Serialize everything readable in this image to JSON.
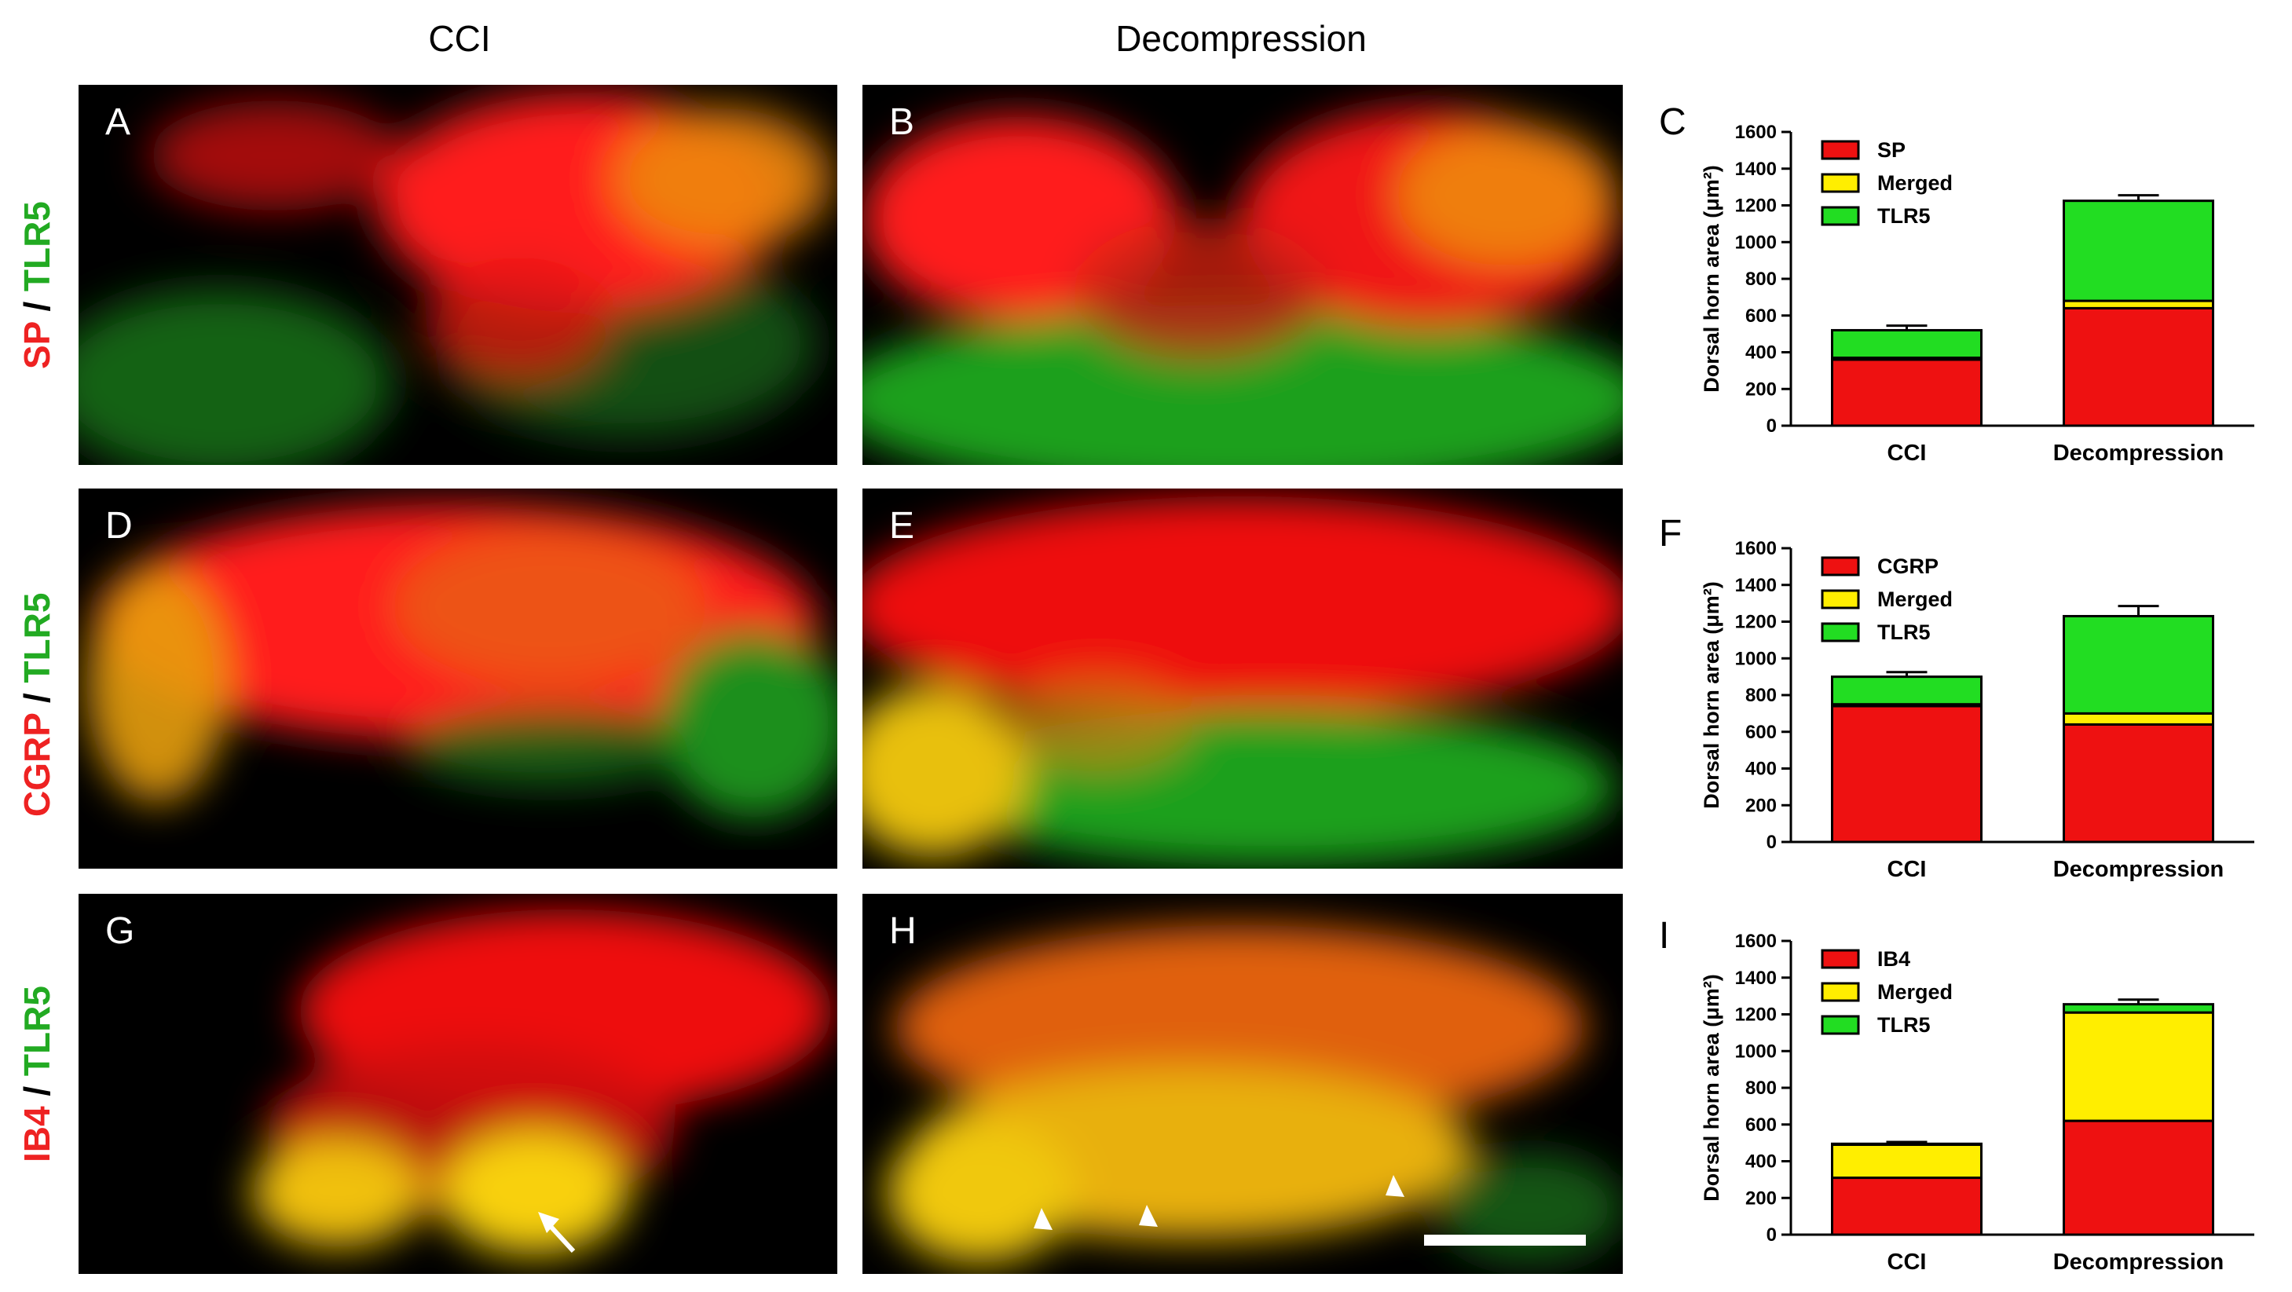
{
  "columns": [
    "CCI",
    "Decompression"
  ],
  "rows": [
    {
      "marker": "SP",
      "tlr": "TLR5"
    },
    {
      "marker": "CGRP",
      "tlr": "TLR5"
    },
    {
      "marker": "IB4",
      "tlr": "TLR5"
    }
  ],
  "slash": "/",
  "panel_letters": [
    "A",
    "B",
    "C",
    "D",
    "E",
    "F",
    "G",
    "H",
    "I"
  ],
  "colors": {
    "red": "#ee1111",
    "yellow": "#ffee00",
    "green": "#22dd22"
  },
  "chart_data": [
    {
      "type": "bar",
      "stacked": true,
      "panel": "C",
      "categories": [
        "CCI",
        "Decompression"
      ],
      "ylabel": "Dorsal horn area (μm²)",
      "ylim": [
        0,
        1600
      ],
      "yticks": [
        0,
        200,
        400,
        600,
        800,
        1000,
        1200,
        1400,
        1600
      ],
      "legend_position": "top-left",
      "series": [
        {
          "name": "SP",
          "color": "#ee1111",
          "values": [
            360,
            640
          ],
          "errors": [
            45,
            35
          ]
        },
        {
          "name": "Merged",
          "color": "#ffee00",
          "values": [
            10,
            40
          ],
          "errors": [
            0,
            0
          ]
        },
        {
          "name": "TLR5",
          "color": "#22dd22",
          "values": [
            150,
            545
          ],
          "errors": [
            25,
            30
          ]
        }
      ]
    },
    {
      "type": "bar",
      "stacked": true,
      "panel": "F",
      "categories": [
        "CCI",
        "Decompression"
      ],
      "ylabel": "Dorsal horn area (μm²)",
      "ylim": [
        0,
        1600
      ],
      "yticks": [
        0,
        200,
        400,
        600,
        800,
        1000,
        1200,
        1400,
        1600
      ],
      "legend_position": "top-left",
      "series": [
        {
          "name": "CGRP",
          "color": "#ee1111",
          "values": [
            740,
            640
          ],
          "errors": [
            50,
            30
          ]
        },
        {
          "name": "Merged",
          "color": "#ffee00",
          "values": [
            10,
            60
          ],
          "errors": [
            0,
            0
          ]
        },
        {
          "name": "TLR5",
          "color": "#22dd22",
          "values": [
            150,
            530
          ],
          "errors": [
            25,
            55
          ]
        }
      ]
    },
    {
      "type": "bar",
      "stacked": true,
      "panel": "I",
      "categories": [
        "CCI",
        "Decompression"
      ],
      "ylabel": "Dorsal horn area (μm²)",
      "ylim": [
        0,
        1600
      ],
      "yticks": [
        0,
        200,
        400,
        600,
        800,
        1000,
        1200,
        1400,
        1600
      ],
      "legend_position": "top-left",
      "series": [
        {
          "name": "IB4",
          "color": "#ee1111",
          "values": [
            310,
            620
          ],
          "errors": [
            40,
            45
          ]
        },
        {
          "name": "Merged",
          "color": "#ffee00",
          "values": [
            180,
            590
          ],
          "errors": [
            0,
            20
          ]
        },
        {
          "name": "TLR5",
          "color": "#22dd22",
          "values": [
            5,
            45
          ],
          "errors": [
            10,
            25
          ]
        }
      ]
    }
  ]
}
